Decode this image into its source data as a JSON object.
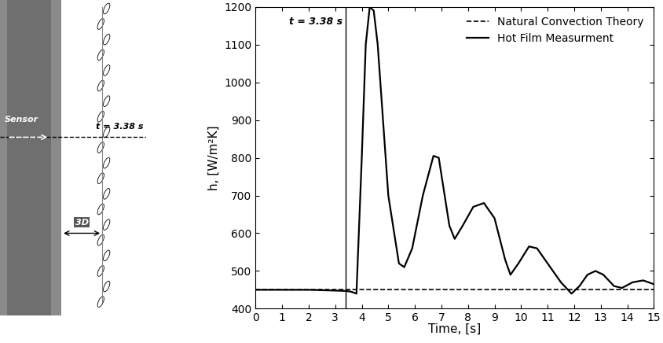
{
  "photo": {
    "labels": {
      "sensor": "Sensor",
      "time": "t = 3.38 s",
      "spacing": "3D"
    }
  },
  "chart_data": {
    "type": "line",
    "x_label": "Time, [s]",
    "y_label": "h, [W/m²K]",
    "xlim": [
      0,
      15
    ],
    "xticks": [
      0,
      1,
      2,
      3,
      4,
      5,
      6,
      7,
      8,
      9,
      10,
      11,
      12,
      13,
      14,
      15
    ],
    "ylim": [
      400,
      1200
    ],
    "yticks": [
      400,
      500,
      600,
      700,
      800,
      900,
      1000,
      1100,
      1200
    ],
    "legend": "upper right",
    "annotations": [
      {
        "x": 3.38,
        "text": "t = 3.38 s"
      }
    ],
    "series": [
      {
        "name": "Natural Convection Theory",
        "color": "#000000",
        "line_style": "dashed",
        "x": [
          0,
          15
        ],
        "values": [
          450,
          450
        ]
      },
      {
        "name": "Hot Film Measurment",
        "color": "#000000",
        "line_style": "solid",
        "x": [
          0,
          1,
          2,
          3,
          3.4,
          3.6,
          3.8,
          4.0,
          4.15,
          4.3,
          4.45,
          4.6,
          5.0,
          5.4,
          5.6,
          5.9,
          6.3,
          6.7,
          6.9,
          7.3,
          7.5,
          7.8,
          8.2,
          8.6,
          9.0,
          9.4,
          9.6,
          9.9,
          10.3,
          10.6,
          11.0,
          11.5,
          11.9,
          12.2,
          12.5,
          12.8,
          13.1,
          13.5,
          13.8,
          14.2,
          14.6,
          15.0
        ],
        "values": [
          450,
          450,
          450,
          448,
          447,
          445,
          440,
          800,
          1100,
          1200,
          1190,
          1100,
          700,
          520,
          510,
          560,
          700,
          805,
          800,
          620,
          585,
          620,
          670,
          680,
          640,
          530,
          490,
          520,
          565,
          560,
          520,
          470,
          440,
          460,
          490,
          500,
          490,
          460,
          455,
          470,
          475,
          465
        ]
      }
    ]
  }
}
